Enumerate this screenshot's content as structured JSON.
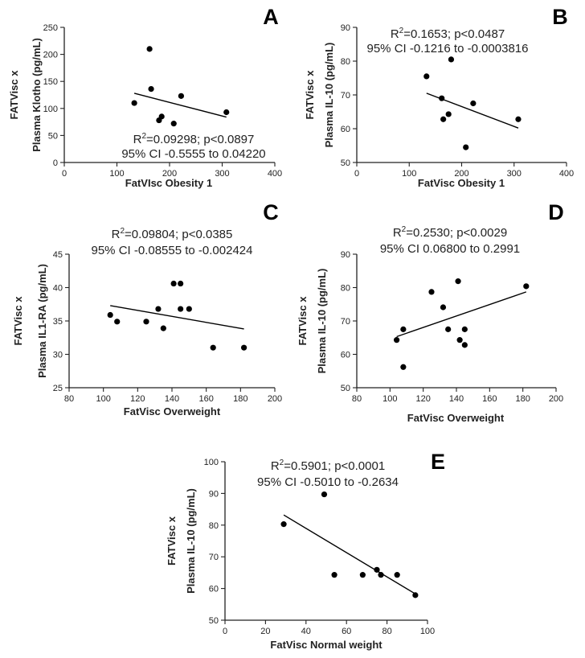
{
  "chart_data": [
    {
      "id": "A",
      "type": "scatter",
      "panel_label": "A",
      "ylabel_line1": "FATVisc x",
      "ylabel_line2": "Plasma Klotho (pg/mL)",
      "xlabel": "FatVIsc Obesity 1",
      "xlim": [
        0,
        400
      ],
      "xticks": [
        0,
        100,
        200,
        300,
        400
      ],
      "ylim": [
        0,
        250
      ],
      "yticks": [
        0,
        50,
        100,
        150,
        200,
        250
      ],
      "points": [
        [
          133,
          110
        ],
        [
          162,
          210
        ],
        [
          165,
          136
        ],
        [
          180,
          78
        ],
        [
          185,
          85
        ],
        [
          208,
          72
        ],
        [
          222,
          123
        ],
        [
          308,
          93
        ]
      ],
      "fit_line": [
        [
          133,
          128
        ],
        [
          308,
          84
        ]
      ],
      "r2_prefix": "R",
      "r2_sup": "2",
      "r2_rest": "=0.09298; p<0.0897",
      "ci_text": "95% CI -0.5555 to 0.04220"
    },
    {
      "id": "B",
      "type": "scatter",
      "panel_label": "B",
      "ylabel_line1": "FATVisc x",
      "ylabel_line2": "Plasma IL-10 (pg/mL)",
      "xlabel": "FatVisc Obesity 1",
      "xlim": [
        0,
        400
      ],
      "xticks": [
        0,
        100,
        200,
        300,
        400
      ],
      "ylim": [
        50,
        90
      ],
      "yticks": [
        50,
        60,
        70,
        80,
        90
      ],
      "points": [
        [
          133,
          75.5
        ],
        [
          162,
          69
        ],
        [
          165,
          62.8
        ],
        [
          175,
          64.3
        ],
        [
          180,
          80.5
        ],
        [
          208,
          54.5
        ],
        [
          222,
          67.5
        ],
        [
          308,
          62.8
        ]
      ],
      "fit_line": [
        [
          133,
          70.5
        ],
        [
          308,
          60.2
        ]
      ],
      "r2_prefix": "R",
      "r2_sup": "2",
      "r2_rest": "=0.1653; p<0.0487",
      "ci_text": "95% CI -0.1216 to -0.0003816"
    },
    {
      "id": "C",
      "type": "scatter",
      "panel_label": "C",
      "ylabel_line1": "FATVisc x",
      "ylabel_line2": "Plasma IL1-RA (pg/mL)",
      "xlabel": "FatVisc Overweight",
      "xlim": [
        80,
        200
      ],
      "xticks": [
        80,
        100,
        120,
        140,
        160,
        180,
        200
      ],
      "ylim": [
        25,
        45
      ],
      "yticks": [
        25,
        30,
        35,
        40,
        45
      ],
      "points": [
        [
          104,
          35.9
        ],
        [
          108,
          34.9
        ],
        [
          125,
          34.9
        ],
        [
          132,
          36.8
        ],
        [
          135,
          33.9
        ],
        [
          141,
          40.6
        ],
        [
          145,
          40.6
        ],
        [
          145,
          36.8
        ],
        [
          150,
          36.8
        ],
        [
          164,
          31
        ],
        [
          182,
          31
        ]
      ],
      "fit_line": [
        [
          104,
          37.3
        ],
        [
          182,
          33.8
        ]
      ],
      "r2_prefix": "R",
      "r2_sup": "2",
      "r2_rest": "=0.09804; p<0.0385",
      "ci_text": "95% CI -0.08555 to -0.002424"
    },
    {
      "id": "D",
      "type": "scatter",
      "panel_label": "D",
      "ylabel_line1": "FATVisc x",
      "ylabel_line2": "Plasma IL-10 (pg/mL)",
      "xlabel": "FatVisc Overweight",
      "xlim": [
        80,
        200
      ],
      "xticks": [
        80,
        100,
        120,
        140,
        160,
        180,
        200
      ],
      "ylim": [
        50,
        90
      ],
      "yticks": [
        50,
        60,
        70,
        80,
        90
      ],
      "points": [
        [
          104,
          64.3
        ],
        [
          108,
          67.5
        ],
        [
          108,
          56.2
        ],
        [
          125,
          78.7
        ],
        [
          132,
          74.1
        ],
        [
          135,
          67.5
        ],
        [
          141,
          81.9
        ],
        [
          142,
          64.3
        ],
        [
          145,
          67.5
        ],
        [
          145,
          62.8
        ],
        [
          182,
          80.4
        ]
      ],
      "fit_line": [
        [
          104,
          65.3
        ],
        [
          182,
          78.7
        ]
      ],
      "r2_prefix": "R",
      "r2_sup": "2",
      "r2_rest": "=0.2530; p<0.0029",
      "ci_text": "95% CI 0.06800 to 0.2991"
    },
    {
      "id": "E",
      "type": "scatter",
      "panel_label": "E",
      "ylabel_line1": "FATVisc x",
      "ylabel_line2": "Plasma IL-10 (pg/mL)",
      "xlabel": "FatVisc Normal weight",
      "xlim": [
        0,
        100
      ],
      "xticks": [
        0,
        20,
        40,
        60,
        80,
        100
      ],
      "ylim": [
        50,
        100
      ],
      "yticks": [
        50,
        60,
        70,
        80,
        90,
        100
      ],
      "points": [
        [
          29,
          80.3
        ],
        [
          49,
          89.7
        ],
        [
          54,
          64.3
        ],
        [
          68,
          64.3
        ],
        [
          75,
          65.9
        ],
        [
          77,
          64.3
        ],
        [
          85,
          64.3
        ],
        [
          94,
          57.9
        ]
      ],
      "fit_line": [
        [
          29,
          83.2
        ],
        [
          94,
          58.3
        ]
      ],
      "r2_prefix": "R",
      "r2_sup": "2",
      "r2_rest": "=0.5901; p<0.0001",
      "ci_text": "95% CI -0.5010 to -0.2634"
    }
  ]
}
